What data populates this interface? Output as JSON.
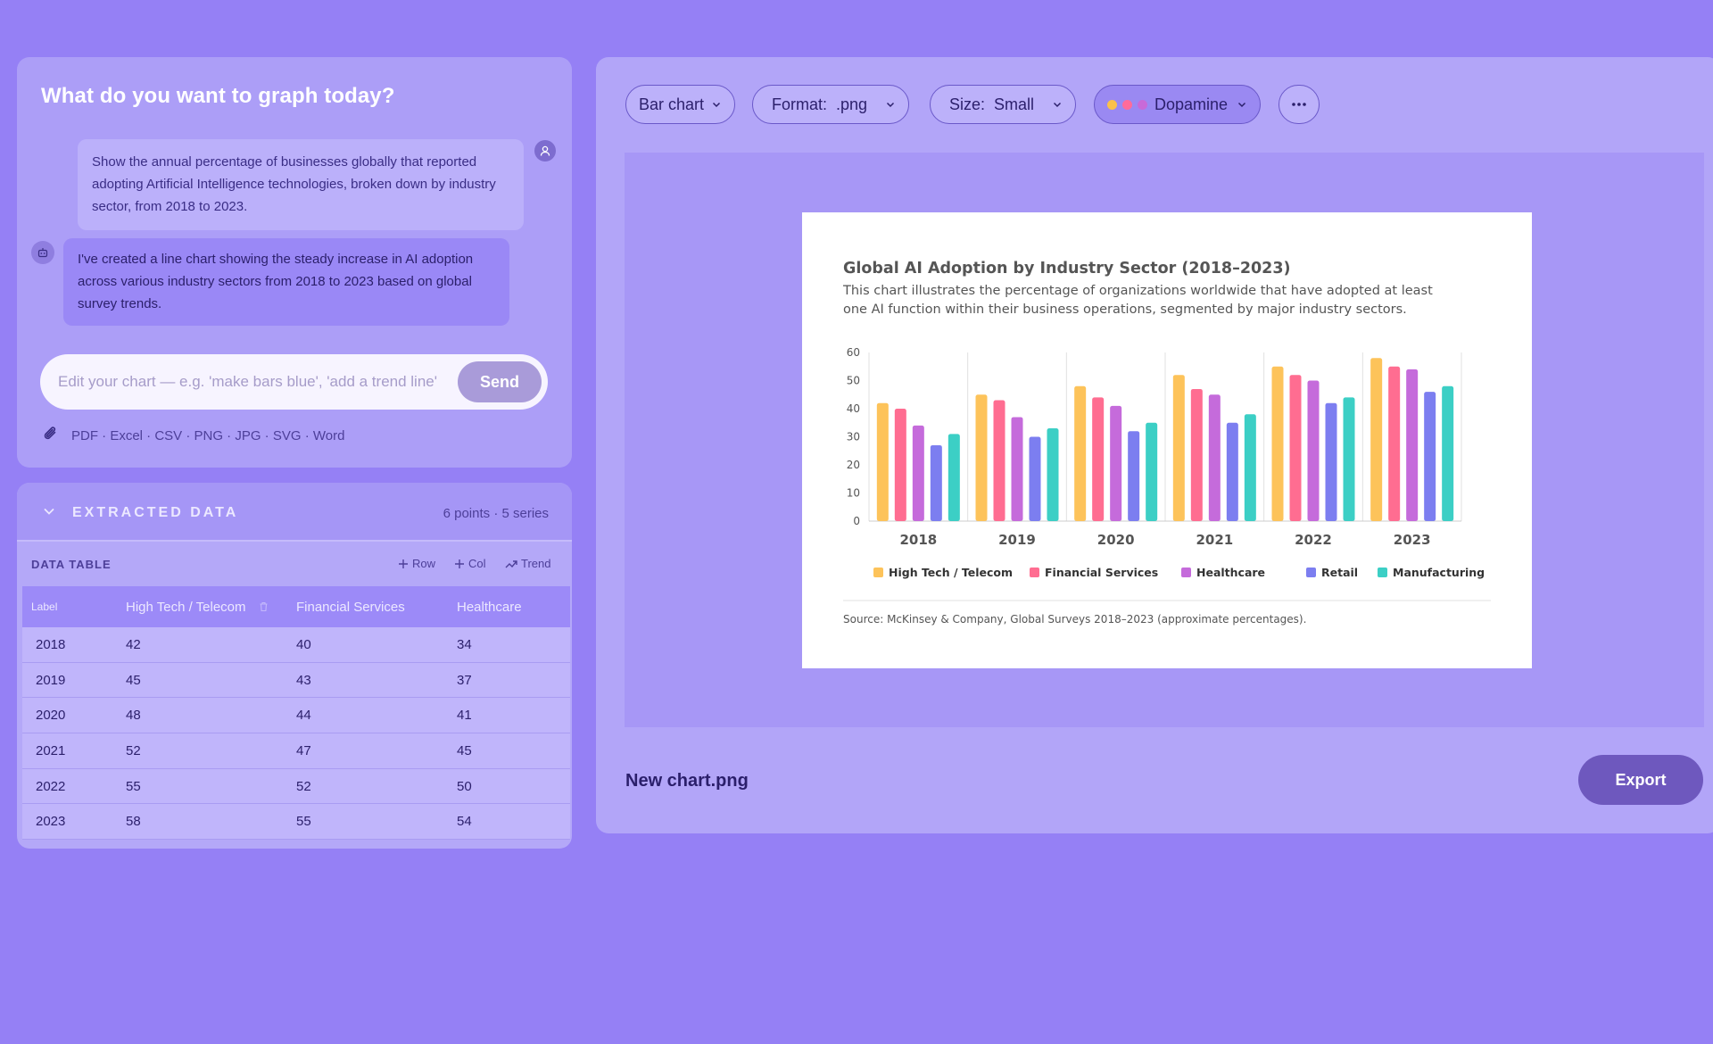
{
  "chat": {
    "title": "What do you want to graph today?",
    "user_message": "Show the annual percentage of businesses globally that reported adopting Artificial Intelligence technologies, broken down by industry sector, from 2018 to 2023.",
    "bot_message": "I've created a line chart showing the steady increase in AI adoption across various industry sectors from 2018 to 2023 based on global survey trends.",
    "input_placeholder": "Edit your chart — e.g. 'make bars blue', 'add a trend line'",
    "send_label": "Send",
    "formats_label": "PDF · Excel · CSV · PNG · JPG · SVG · Word"
  },
  "data_panel": {
    "title": "EXTRACTED DATA",
    "meta": "6 points · 5 series",
    "table_label": "DATA TABLE",
    "row_btn": "Row",
    "col_btn": "Col",
    "trend_btn": "Trend",
    "columns": [
      "Label",
      "High Tech / Telecom",
      "Financial Services",
      "Healthcare"
    ],
    "rows": [
      [
        "2018",
        "42",
        "40",
        "34"
      ],
      [
        "2019",
        "45",
        "43",
        "37"
      ],
      [
        "2020",
        "48",
        "44",
        "41"
      ],
      [
        "2021",
        "52",
        "47",
        "45"
      ],
      [
        "2022",
        "55",
        "52",
        "50"
      ],
      [
        "2023",
        "58",
        "55",
        "54"
      ]
    ]
  },
  "toolbar": {
    "chart_type": "Bar chart",
    "format_label": "Format:",
    "format_value": ".png",
    "size_label": "Size:",
    "size_value": "Small",
    "theme": "Dopamine",
    "theme_dots": [
      "#fbc14a",
      "#ff6b9a",
      "#c86ad8"
    ]
  },
  "file": {
    "name": "New chart.png",
    "export_label": "Export"
  },
  "chart_data": {
    "type": "bar",
    "title": "Global AI Adoption by Industry Sector (2018–2023)",
    "subtitle_lines": [
      "This chart illustrates the percentage of organizations worldwide that have adopted at least",
      "one AI function within their business operations, segmented by major industry sectors."
    ],
    "source": "Source: McKinsey & Company, Global Surveys 2018–2023 (approximate percentages).",
    "categories": [
      "2018",
      "2019",
      "2020",
      "2021",
      "2022",
      "2023"
    ],
    "ylim": [
      0,
      60
    ],
    "yticks": [
      0,
      10,
      20,
      30,
      40,
      50,
      60
    ],
    "legend_position": "bottom",
    "series": [
      {
        "name": "High Tech / Telecom",
        "color": "#fdc35a",
        "values": [
          42,
          45,
          48,
          52,
          55,
          58
        ]
      },
      {
        "name": "Financial Services",
        "color": "#ff6d91",
        "values": [
          40,
          43,
          44,
          47,
          52,
          55
        ]
      },
      {
        "name": "Healthcare",
        "color": "#c56bdb",
        "values": [
          34,
          37,
          41,
          45,
          50,
          54
        ]
      },
      {
        "name": "Retail",
        "color": "#7c7ef0",
        "values": [
          27,
          30,
          32,
          35,
          42,
          46
        ]
      },
      {
        "name": "Manufacturing",
        "color": "#3ccfc5",
        "values": [
          31,
          33,
          35,
          38,
          44,
          48
        ]
      }
    ]
  }
}
